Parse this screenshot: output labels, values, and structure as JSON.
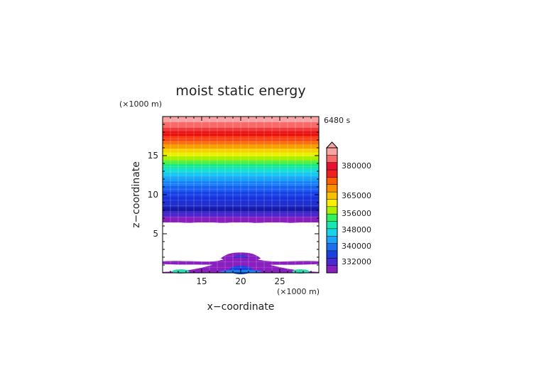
{
  "chart_data": {
    "type": "heatmap",
    "title": "moist static energy",
    "time_label": "6480 s",
    "xlabel": "x−coordinate",
    "ylabel": "z−coordinate",
    "x_unit": "(×1000 m)",
    "y_unit": "(×1000 m)",
    "xlim": [
      10,
      30
    ],
    "ylim": [
      0,
      20
    ],
    "x_ticks": [
      15,
      20,
      25
    ],
    "y_ticks": [
      5,
      10,
      15
    ],
    "colorbar": {
      "tick_labels": [
        "332000",
        "340000",
        "348000",
        "356000",
        "365000",
        "380000"
      ],
      "colors": [
        "#8a1fbf",
        "#4a2ad0",
        "#1a40e0",
        "#1e6ef0",
        "#1aa4f8",
        "#18d4e8",
        "#18e8b0",
        "#30f060",
        "#a8f000",
        "#f8f000",
        "#f8c000",
        "#f89000",
        "#f86000",
        "#f02020",
        "#e81030",
        "#f86a6a",
        "#f8a4a4"
      ],
      "extend_arrow_color": "#f8a4a4"
    },
    "bands": [
      {
        "z_top": 20.0,
        "z_bottom": 19.3,
        "color": "#f8a4a4"
      },
      {
        "z_top": 19.3,
        "z_bottom": 18.6,
        "color": "#f86a6a"
      },
      {
        "z_top": 18.6,
        "z_bottom": 18.1,
        "color": "#f03a3a"
      },
      {
        "z_top": 18.1,
        "z_bottom": 17.5,
        "color": "#e81010"
      },
      {
        "z_top": 17.5,
        "z_bottom": 16.9,
        "color": "#f84018"
      },
      {
        "z_top": 16.9,
        "z_bottom": 16.4,
        "color": "#f87010"
      },
      {
        "z_top": 16.4,
        "z_bottom": 15.9,
        "color": "#f8a000"
      },
      {
        "z_top": 15.9,
        "z_bottom": 15.4,
        "color": "#f8d000"
      },
      {
        "z_top": 15.4,
        "z_bottom": 14.9,
        "color": "#e8f000"
      },
      {
        "z_top": 14.9,
        "z_bottom": 14.4,
        "color": "#a8f000"
      },
      {
        "z_top": 14.4,
        "z_bottom": 13.9,
        "color": "#50f040"
      },
      {
        "z_top": 13.9,
        "z_bottom": 13.4,
        "color": "#18e890"
      },
      {
        "z_top": 13.4,
        "z_bottom": 12.9,
        "color": "#18e0d0"
      },
      {
        "z_top": 12.9,
        "z_bottom": 12.3,
        "color": "#18c8f0"
      },
      {
        "z_top": 12.3,
        "z_bottom": 11.7,
        "color": "#18a0f8"
      },
      {
        "z_top": 11.7,
        "z_bottom": 11.1,
        "color": "#1a80f8"
      },
      {
        "z_top": 11.1,
        "z_bottom": 10.4,
        "color": "#1a60f0"
      },
      {
        "z_top": 10.4,
        "z_bottom": 9.7,
        "color": "#1a40e8"
      },
      {
        "z_top": 9.7,
        "z_bottom": 9.0,
        "color": "#1a30d8"
      },
      {
        "z_top": 9.0,
        "z_bottom": 8.4,
        "color": "#2030c8"
      },
      {
        "z_top": 8.4,
        "z_bottom": 7.8,
        "color": "#1818a8"
      },
      {
        "z_top": 7.8,
        "z_bottom": 7.2,
        "color": "#4a28d0"
      },
      {
        "z_top": 7.2,
        "z_bottom": 6.5,
        "color": "#8a1fbf"
      }
    ],
    "low_level_features": [
      {
        "kind": "purple-layer",
        "z": 1.3,
        "thickness": 0.35,
        "color": "#8a1fbf"
      },
      {
        "kind": "central-hump",
        "x_center": 20.0,
        "z_top": 2.6,
        "color": "#8a1fbf",
        "core_color": "#2a30d0"
      },
      {
        "kind": "surface-layer",
        "z_top": 0.3,
        "color": "#8a1fbf"
      },
      {
        "kind": "surface-patch",
        "x_center": 12.5,
        "color": "#30d8b0"
      },
      {
        "kind": "surface-patch",
        "x_center": 27.5,
        "color": "#30d8b0"
      },
      {
        "kind": "surface-core",
        "x_center": 20.0,
        "color": "#1a40e0"
      }
    ]
  }
}
